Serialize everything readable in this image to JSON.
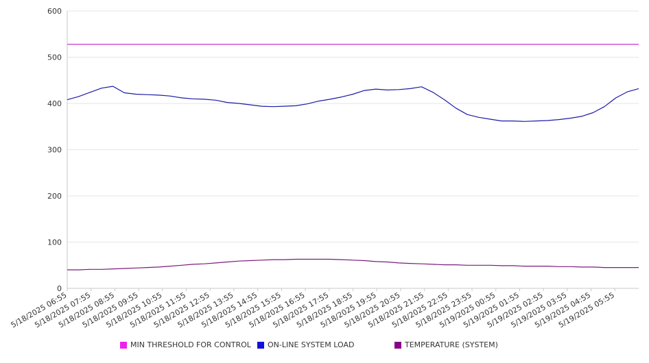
{
  "chart_data": {
    "type": "line",
    "title": "",
    "xlabel": "",
    "ylabel": "",
    "ylim": [
      0,
      600
    ],
    "yticks": [
      0,
      100,
      200,
      300,
      400,
      500,
      600
    ],
    "grid": true,
    "legend_position": "bottom",
    "x_tick_labels": [
      "5/18/2025 06:55",
      "5/18/2025 07:55",
      "5/18/2025 08:55",
      "5/18/2025 09:55",
      "5/18/2025 10:55",
      "5/18/2025 11:55",
      "5/18/2025 12:55",
      "5/18/2025 13:55",
      "5/18/2025 14:55",
      "5/18/2025 15:55",
      "5/18/2025 16:55",
      "5/18/2025 17:55",
      "5/18/2025 18:55",
      "5/18/2025 19:55",
      "5/18/2025 20:55",
      "5/18/2025 21:55",
      "5/18/2025 22:55",
      "5/18/2025 23:55",
      "5/19/2025 00:55",
      "5/19/2025 01:55",
      "5/19/2025 02:55",
      "5/19/2025 03:55",
      "5/19/2025 04:55",
      "5/19/2025 05:55"
    ],
    "x_hours": [
      0,
      0.5,
      1,
      1.5,
      2,
      2.5,
      3,
      3.5,
      4,
      4.5,
      5,
      5.5,
      6,
      6.5,
      7,
      7.5,
      8,
      8.5,
      9,
      9.5,
      10,
      10.5,
      11,
      11.5,
      12,
      12.5,
      13,
      13.5,
      14,
      14.5,
      15,
      15.5,
      16,
      16.5,
      17,
      17.5,
      18,
      18.5,
      19,
      19.5,
      20,
      20.5,
      21,
      21.5,
      22,
      22.5,
      23,
      23.5,
      24,
      24.5,
      25
    ],
    "series": [
      {
        "name": "MIN THRESHOLD FOR CONTROL",
        "color": "#cc33cc",
        "values": [
          528,
          528,
          528,
          528,
          528,
          528,
          528,
          528,
          528,
          528,
          528,
          528,
          528,
          528,
          528,
          528,
          528,
          528,
          528,
          528,
          528,
          528,
          528,
          528,
          528,
          528,
          528,
          528,
          528,
          528,
          528,
          528,
          528,
          528,
          528,
          528,
          528,
          528,
          528,
          528,
          528,
          528,
          528,
          528,
          528,
          528,
          528,
          528,
          528,
          528,
          528
        ]
      },
      {
        "name": "ON-LINE SYSTEM LOAD",
        "color": "#1a1aa6",
        "values": [
          408,
          415,
          424,
          433,
          437,
          423,
          420,
          419,
          418,
          416,
          412,
          410,
          409,
          407,
          402,
          400,
          397,
          394,
          393,
          394,
          395,
          399,
          405,
          409,
          414,
          420,
          428,
          431,
          429,
          430,
          432,
          436,
          424,
          408,
          390,
          376,
          370,
          366,
          362,
          362,
          361,
          362,
          363,
          365,
          368,
          372,
          380,
          393,
          412,
          425,
          432
        ]
      },
      {
        "name": "TEMPERATURE (SYSTEM)",
        "color": "#7a1a7a",
        "values": [
          40,
          40,
          41,
          41,
          42,
          43,
          44,
          45,
          46,
          48,
          50,
          52,
          53,
          55,
          57,
          59,
          60,
          61,
          62,
          62,
          63,
          63,
          63,
          63,
          62,
          61,
          60,
          58,
          57,
          55,
          54,
          53,
          52,
          51,
          51,
          50,
          50,
          50,
          49,
          49,
          48,
          48,
          48,
          47,
          47,
          46,
          46,
          45,
          45,
          45,
          45
        ]
      }
    ]
  },
  "legend": {
    "items": [
      {
        "label": "MIN THRESHOLD FOR CONTROL",
        "color": "#ee22ee"
      },
      {
        "label": "ON-LINE SYSTEM LOAD",
        "color": "#1111dd"
      },
      {
        "label": "TEMPERATURE (SYSTEM)",
        "color": "#880088"
      }
    ]
  }
}
